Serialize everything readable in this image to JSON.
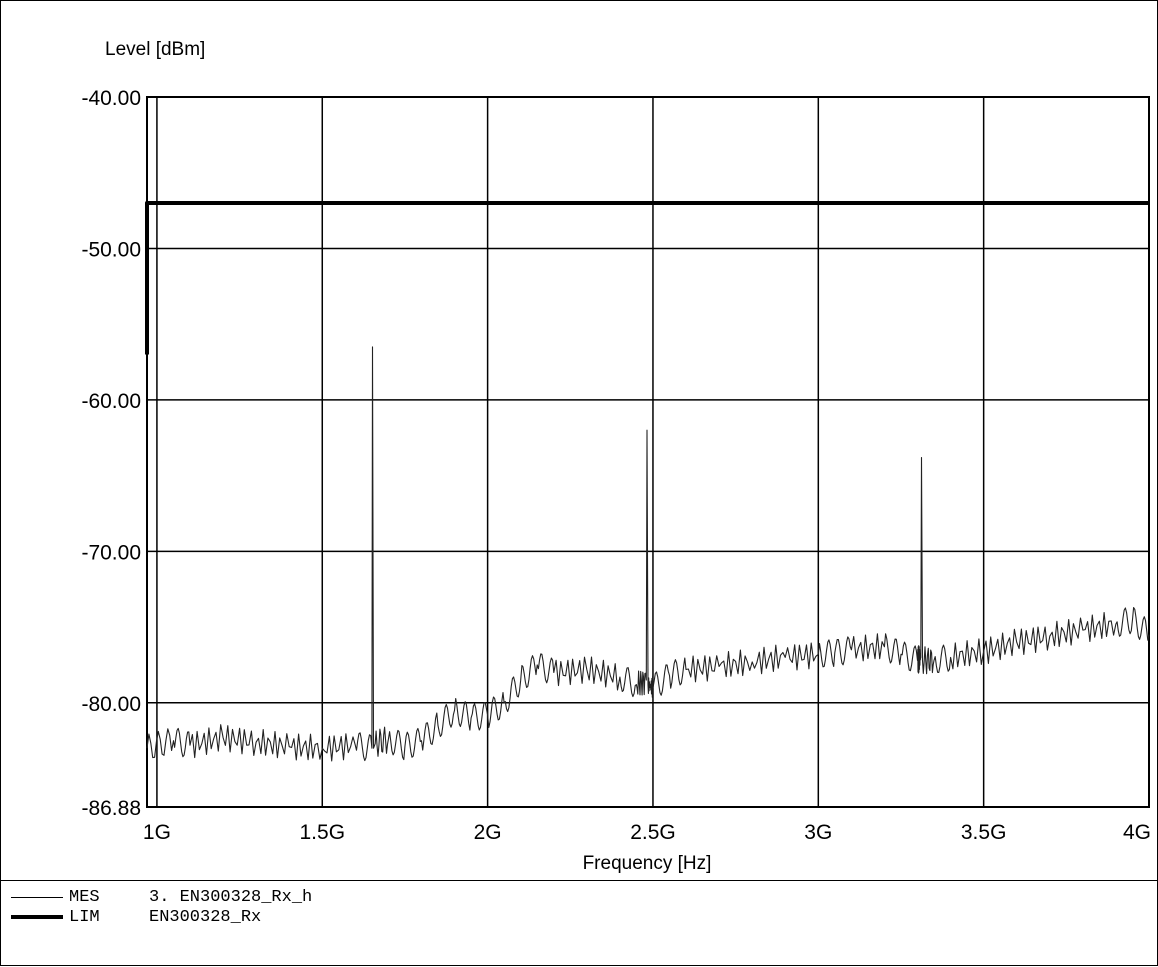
{
  "chart_data": {
    "type": "line",
    "ylabel": "Level [dBm]",
    "xlabel": "Frequency [Hz]",
    "y_ticks": [
      "-40.00",
      "-50.00",
      "-60.00",
      "-70.00",
      "-80.00",
      "-86.88"
    ],
    "y_tick_values": [
      -40,
      -50,
      -60,
      -70,
      -80,
      -86.88
    ],
    "x_ticks": [
      "1G",
      "1.5G",
      "2G",
      "2.5G",
      "3G",
      "3.5G",
      "4G"
    ],
    "x_tick_values": [
      1.0,
      1.5,
      2.0,
      2.5,
      3.0,
      3.5,
      4.0
    ],
    "x_unit_label": "GHz as printed with G suffix",
    "xlim": [
      0.97,
      4.0
    ],
    "ylim": [
      -86.88,
      -40.0
    ],
    "grid": true,
    "series": [
      {
        "name": "MES",
        "style": "thin",
        "x": [
          0.97,
          1.05,
          1.1,
          1.2,
          1.3,
          1.4,
          1.5,
          1.6,
          1.65,
          1.652,
          1.655,
          1.66,
          1.7,
          1.75,
          1.8,
          1.85,
          1.9,
          1.95,
          2.0,
          2.05,
          2.1,
          2.15,
          2.2,
          2.3,
          2.4,
          2.45,
          2.48,
          2.482,
          2.485,
          2.5,
          2.55,
          2.6,
          2.7,
          2.8,
          2.9,
          3.0,
          3.05,
          3.1,
          3.2,
          3.25,
          3.3,
          3.31,
          3.312,
          3.315,
          3.35,
          3.4,
          3.5,
          3.6,
          3.7,
          3.8,
          3.9,
          3.95,
          4.0
        ],
        "y": [
          -83.0,
          -82.5,
          -82.8,
          -82.3,
          -82.6,
          -82.9,
          -83.0,
          -82.8,
          -83.0,
          -56.5,
          -83.0,
          -82.7,
          -82.4,
          -82.9,
          -82.5,
          -81.5,
          -80.5,
          -81.0,
          -80.8,
          -80.0,
          -78.5,
          -77.5,
          -78.0,
          -77.8,
          -78.3,
          -78.8,
          -78.5,
          -62.0,
          -78.8,
          -79.0,
          -78.2,
          -77.8,
          -77.6,
          -77.3,
          -77.0,
          -76.8,
          -76.7,
          -76.5,
          -76.3,
          -76.8,
          -77.2,
          -77.0,
          -63.8,
          -77.2,
          -77.2,
          -77.0,
          -76.6,
          -76.0,
          -75.6,
          -75.2,
          -74.8,
          -74.5,
          -75.5
        ]
      },
      {
        "name": "LIM",
        "style": "thick",
        "x": [
          0.97,
          0.97,
          4.0
        ],
        "y": [
          -57.0,
          -47.0,
          -47.0
        ]
      }
    ]
  },
  "legend": {
    "rows": [
      {
        "tag": "MES",
        "text": "3. EN300328_Rx_h",
        "style": "thin"
      },
      {
        "tag": "LIM",
        "text": "EN300328_Rx",
        "style": "thick"
      }
    ]
  }
}
